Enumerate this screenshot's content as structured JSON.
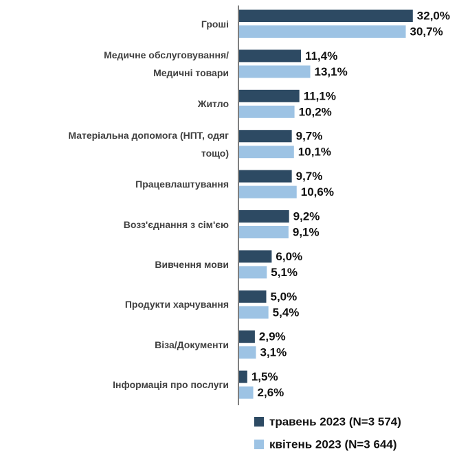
{
  "chart_data": {
    "type": "bar",
    "orientation": "horizontal",
    "categories": [
      "Гроші",
      "Медичне обслуговування/\nМедичні товари",
      "Житло",
      "Матеріальна допомога (НПТ, одяг\nтощо)",
      "Працевлаштування",
      "Возз'єднання з сім'єю",
      "Вивчення мови",
      "Продукти харчування",
      "Віза/Документи",
      "Інформація про послуги"
    ],
    "series": [
      {
        "name": "травень 2023 (N=3 574)",
        "color": "#2d4a63",
        "values": [
          32.0,
          11.4,
          11.1,
          9.7,
          9.7,
          9.2,
          6.0,
          5.0,
          2.9,
          1.5
        ],
        "value_labels": [
          "32,0%",
          "11,4%",
          "11,1%",
          "9,7%",
          "9,7%",
          "9,2%",
          "6,0%",
          "5,0%",
          "2,9%",
          "1,5%"
        ]
      },
      {
        "name": "квітень 2023 (N=3 644)",
        "color": "#9dc3e4",
        "values": [
          30.7,
          13.1,
          10.2,
          10.1,
          10.6,
          9.1,
          5.1,
          5.4,
          3.1,
          2.6
        ],
        "value_labels": [
          "30,7%",
          "13,1%",
          "10,2%",
          "10,1%",
          "10,6%",
          "9,1%",
          "5,1%",
          "5,4%",
          "3,1%",
          "2,6%"
        ]
      }
    ],
    "legend": "bottom-right"
  }
}
